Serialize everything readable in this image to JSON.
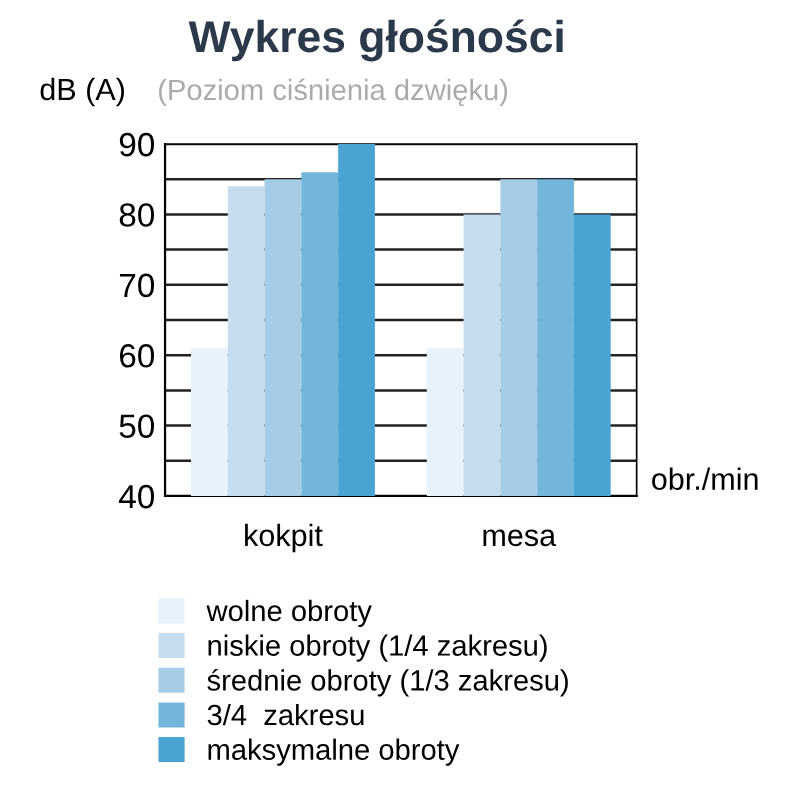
{
  "chart_data": {
    "type": "bar",
    "title": "Wykres głośności",
    "subtitle": "(Poziom ciśnienia dzwięku)",
    "ylabel": "dB (A)",
    "xlabel": "obr./min",
    "categories": [
      "kokpit",
      "mesa"
    ],
    "series": [
      {
        "name": "wolne obroty",
        "color": "#e8f2fa",
        "values": [
          61,
          61
        ]
      },
      {
        "name": "niskie obroty (1/4 zakresu)",
        "color": "#c5ddef",
        "values": [
          84,
          80
        ]
      },
      {
        "name": "średnie obroty (1/3 zakresu)",
        "color": "#a6cde6",
        "values": [
          85,
          85
        ]
      },
      {
        "name": "3/4  zakresu",
        "color": "#72b6dc",
        "values": [
          86,
          85
        ]
      },
      {
        "name": "maksymalne obroty",
        "color": "#4ba3d4",
        "values": [
          90,
          80
        ]
      }
    ],
    "ylim": [
      40,
      90
    ],
    "yticks": [
      40,
      {
        "value": 45,
        "label": null
      },
      50,
      {
        "value": 55,
        "label": null
      },
      60,
      {
        "value": 65,
        "label": null
      },
      70,
      {
        "value": 75,
        "label": null
      },
      80,
      {
        "value": 85,
        "label": null
      },
      90
    ],
    "grid": "y",
    "legend": "bottom"
  }
}
